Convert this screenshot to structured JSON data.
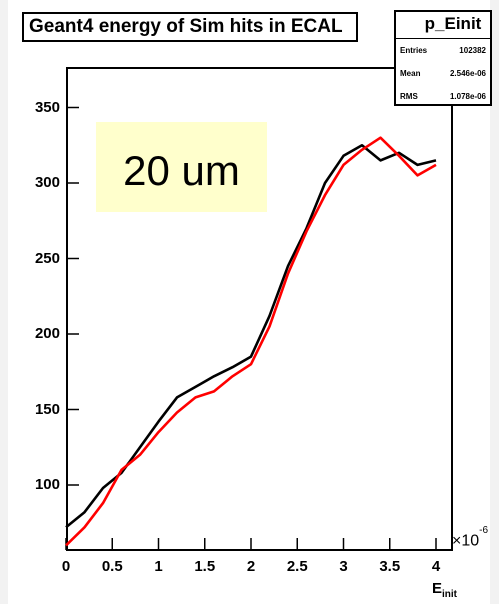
{
  "title": "Geant4 energy of Sim hits in ECAL",
  "annotation": "20 um",
  "stats": {
    "name": "p_Einit",
    "rows": [
      {
        "label": "Entries",
        "value": "102382"
      },
      {
        "label": "Mean",
        "value": "2.546e-06"
      },
      {
        "label": "RMS",
        "value": "1.078e-06"
      }
    ]
  },
  "axis": {
    "x_exponent_base": "×10",
    "x_exponent_power": "-6",
    "x_label_main": "E",
    "x_label_sub": "init"
  },
  "chart_data": {
    "type": "line",
    "title": "Geant4 energy of Sim hits in ECAL",
    "xlabel": "E_init",
    "x_scale_factor": "1e-6",
    "xlim": [
      0,
      4.1
    ],
    "ylim": [
      52,
      390
    ],
    "xticks": [
      0,
      0.5,
      1,
      1.5,
      2,
      2.5,
      3,
      3.5,
      4
    ],
    "xtick_labels": [
      "0",
      "0.5",
      "1",
      "1.5",
      "2",
      "2.5",
      "3",
      "3.5",
      "4"
    ],
    "yticks": [
      100,
      150,
      200,
      250,
      300,
      350
    ],
    "ytick_labels": [
      "100",
      "150",
      "200",
      "250",
      "300",
      "350"
    ],
    "x": [
      0.0,
      0.2,
      0.4,
      0.6,
      0.8,
      1.0,
      1.2,
      1.4,
      1.6,
      1.8,
      2.0,
      2.2,
      2.4,
      2.6,
      2.8,
      3.0,
      3.2,
      3.4,
      3.6,
      3.8,
      4.0
    ],
    "series": [
      {
        "color": "#000000",
        "values": [
          72,
          82,
          98,
          108,
          125,
          142,
          158,
          165,
          172,
          178,
          185,
          212,
          245,
          270,
          300,
          318,
          325,
          315,
          320,
          312,
          315
        ]
      },
      {
        "color": "#ff0000",
        "values": [
          60,
          72,
          88,
          110,
          120,
          135,
          148,
          158,
          162,
          172,
          180,
          205,
          240,
          268,
          292,
          312,
          322,
          330,
          318,
          305,
          312
        ]
      }
    ],
    "grid": false,
    "legend": "none"
  }
}
